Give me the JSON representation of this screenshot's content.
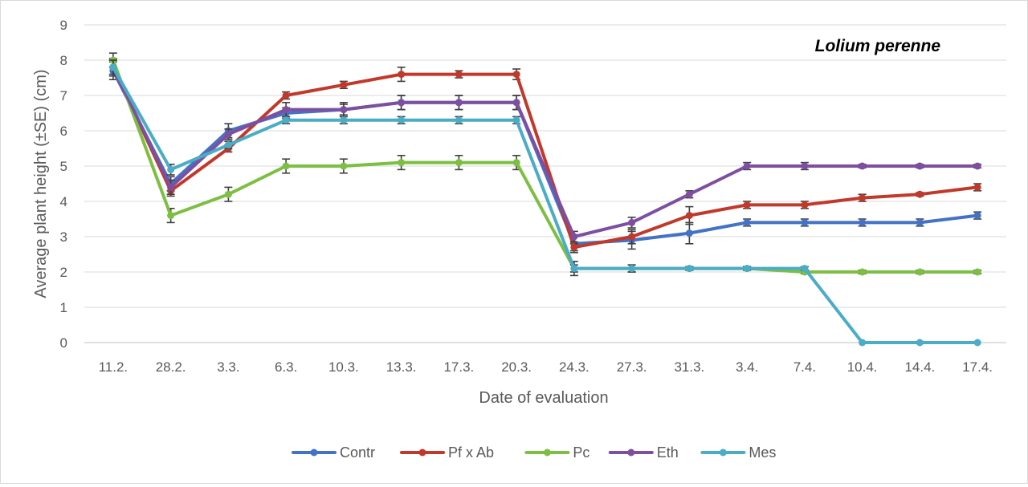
{
  "chart_data": {
    "type": "line",
    "title": "Lolium perenne",
    "xlabel": "Date of evaluation",
    "ylabel": "Average plant height (±SE) (cm)",
    "ylim": [
      0,
      9
    ],
    "yticks": [
      "0",
      "1",
      "2",
      "3",
      "4",
      "5",
      "6",
      "7",
      "8",
      "9"
    ],
    "grid": "horizontal",
    "legend_position": "bottom",
    "categories": [
      "11.2.",
      "28.2.",
      "3.3.",
      "6.3.",
      "10.3.",
      "13.3.",
      "17.3.",
      "20.3.",
      "24.3.",
      "27.3.",
      "31.3.",
      "3.4.",
      "7.4.",
      "10.4.",
      "14.4.",
      "17.4."
    ],
    "series": [
      {
        "name": "Contr",
        "color": "#4472C4",
        "values": [
          7.7,
          4.5,
          6.0,
          6.5,
          6.6,
          6.8,
          6.8,
          6.8,
          2.8,
          2.9,
          3.1,
          3.4,
          3.4,
          3.4,
          3.4,
          3.6
        ],
        "errors": [
          0.25,
          0.2,
          0.2,
          0.15,
          0.15,
          0.2,
          0.2,
          0.2,
          0.25,
          0.25,
          0.3,
          0.1,
          0.1,
          0.1,
          0.1,
          0.1
        ]
      },
      {
        "name": "Pf x Ab",
        "color": "#C0392B",
        "values": [
          7.8,
          4.3,
          5.5,
          7.0,
          7.3,
          7.6,
          7.6,
          7.6,
          2.7,
          3.0,
          3.6,
          3.9,
          3.9,
          4.1,
          4.2,
          4.4
        ],
        "errors": [
          0.25,
          0.15,
          0.1,
          0.1,
          0.1,
          0.2,
          0.1,
          0.15,
          0.1,
          0.2,
          0.25,
          0.1,
          0.1,
          0.1,
          0.05,
          0.1
        ]
      },
      {
        "name": "Pc",
        "color": "#7CBF43",
        "values": [
          8.0,
          3.6,
          4.2,
          5.0,
          5.0,
          5.1,
          5.1,
          5.1,
          2.1,
          2.1,
          2.1,
          2.1,
          2.0,
          2.0,
          2.0,
          2.0
        ],
        "errors": [
          0.2,
          0.2,
          0.2,
          0.2,
          0.2,
          0.2,
          0.2,
          0.2,
          0.2,
          0.1,
          0.05,
          0.05,
          0.05,
          0.05,
          0.05,
          0.05
        ]
      },
      {
        "name": "Eth",
        "color": "#7E4FA0",
        "values": [
          7.8,
          4.4,
          5.9,
          6.6,
          6.6,
          6.8,
          6.8,
          6.8,
          3.0,
          3.4,
          4.2,
          5.0,
          5.0,
          5.0,
          5.0,
          5.0
        ],
        "errors": [
          0.2,
          0.2,
          0.15,
          0.2,
          0.2,
          0.2,
          0.2,
          0.2,
          0.15,
          0.15,
          0.1,
          0.1,
          0.1,
          0.05,
          0.05,
          0.05
        ]
      },
      {
        "name": "Mes",
        "color": "#4BACC6",
        "values": [
          7.8,
          4.9,
          5.6,
          6.3,
          6.3,
          6.3,
          6.3,
          6.3,
          2.1,
          2.1,
          2.1,
          2.1,
          2.1,
          0.0,
          0.0,
          0.0
        ],
        "errors": [
          0.2,
          0.15,
          0.1,
          0.1,
          0.1,
          0.1,
          0.1,
          0.1,
          0.1,
          0.1,
          0.05,
          0.05,
          0.05,
          0.0,
          0.0,
          0.0
        ]
      }
    ]
  }
}
